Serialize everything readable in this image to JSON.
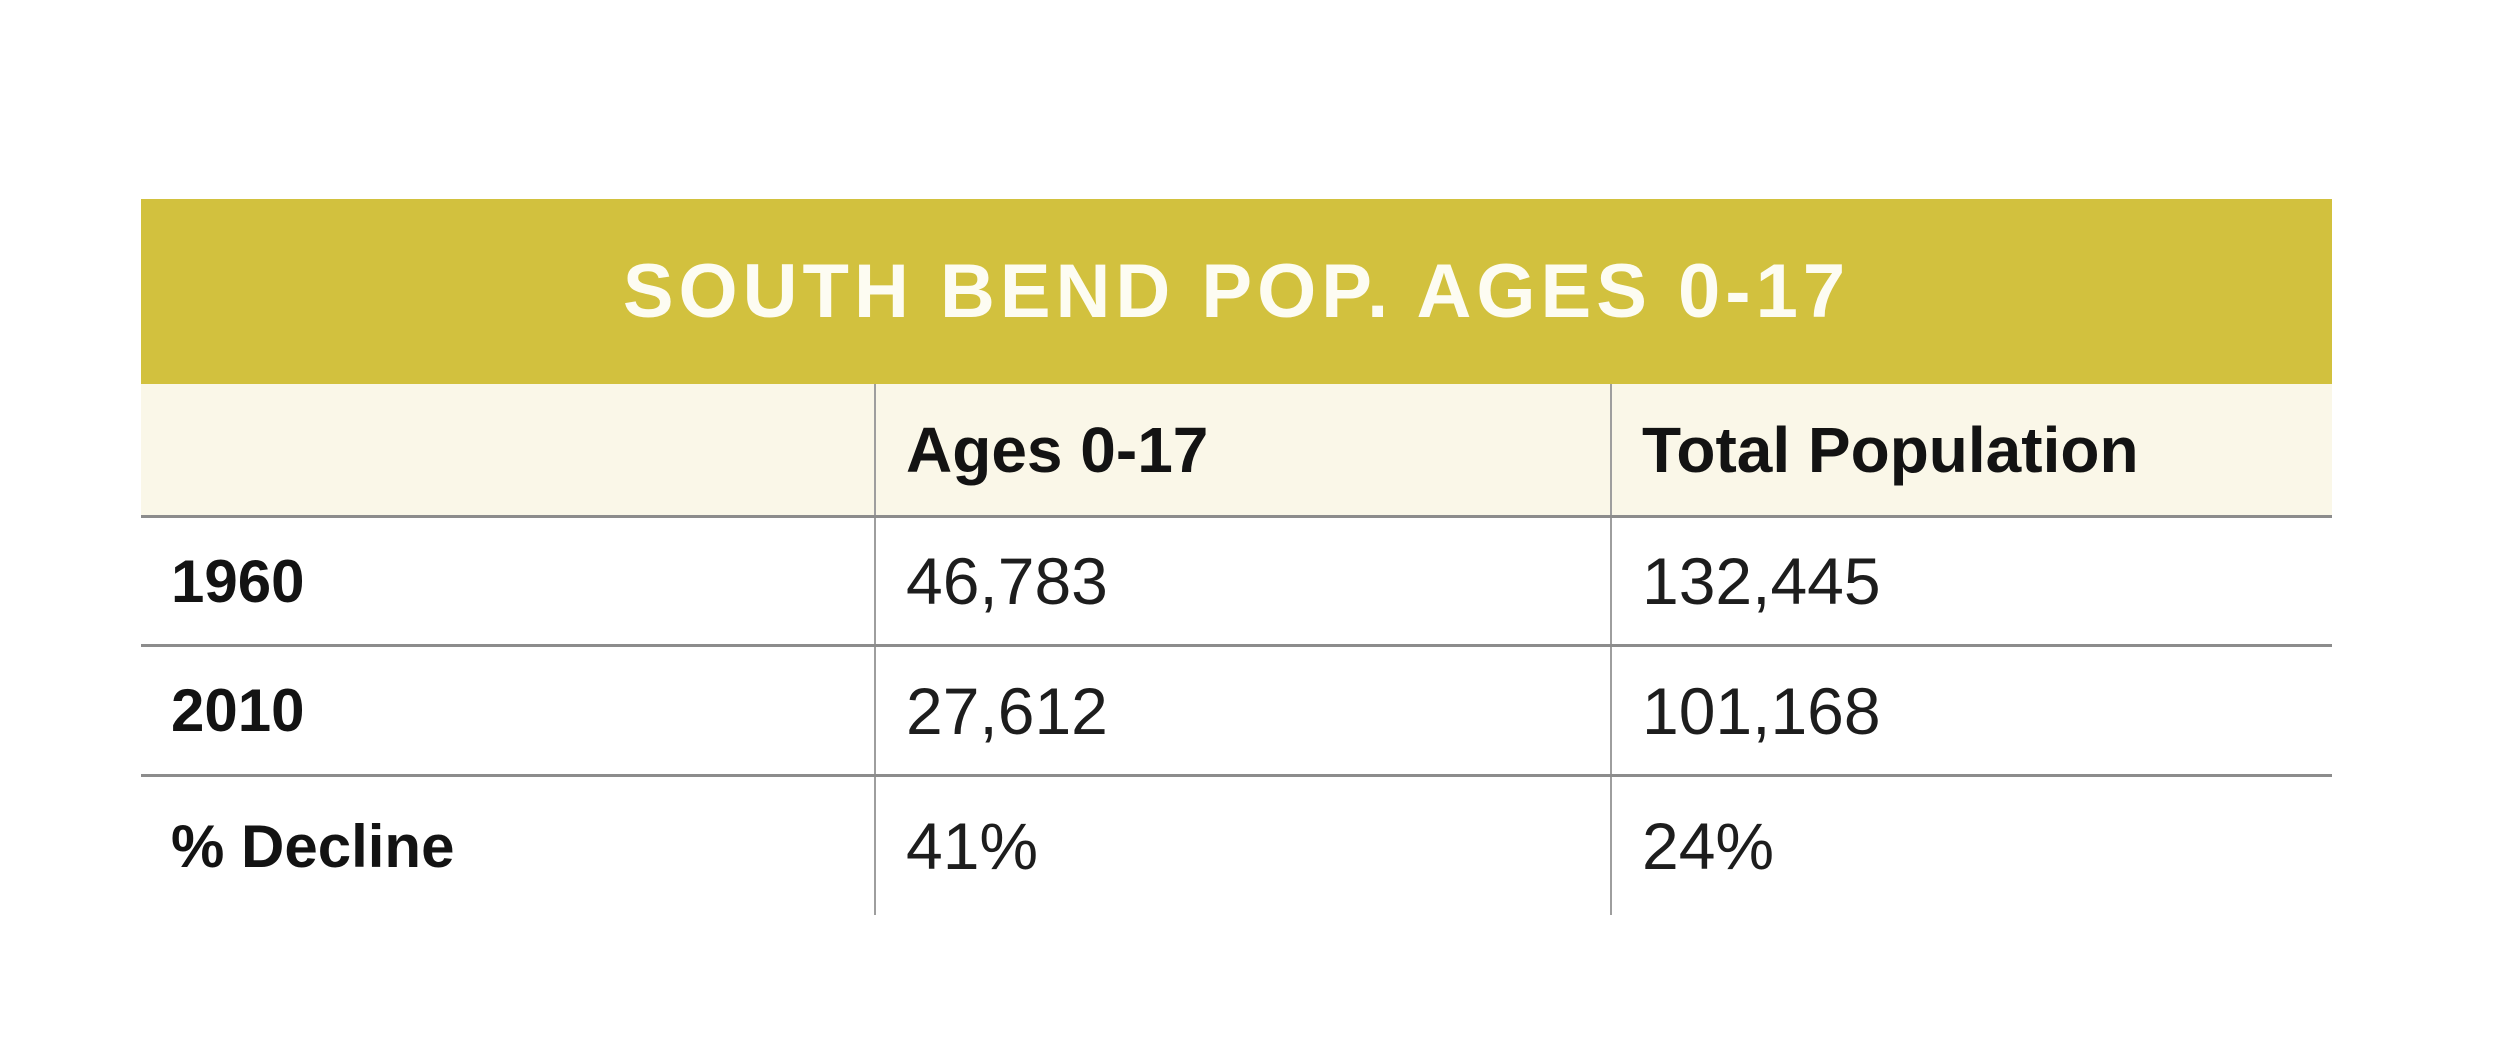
{
  "table": {
    "title": "SOUTH BEND POP. AGES 0-17",
    "columns": {
      "label": "",
      "ages": "Ages 0-17",
      "total": "Total Population"
    },
    "rows": [
      {
        "label": "1960",
        "ages": "46,783",
        "total": "132,445"
      },
      {
        "label": "2010",
        "ages": "27,612",
        "total": "101,168"
      },
      {
        "label": "% Decline",
        "ages": "41%",
        "total": "24%"
      }
    ],
    "colors": {
      "title_bg": "#d2c13e",
      "title_text": "#fdfcf2",
      "header_bg": "#faf7e8",
      "horizontal_rule": "#8c8c8c",
      "vertical_divider": "#9e9e9e",
      "text": "#131313"
    }
  },
  "chart_data": {
    "type": "table",
    "title": "SOUTH BEND POP. AGES 0-17",
    "columns": [
      "",
      "Ages 0-17",
      "Total Population"
    ],
    "rows": [
      [
        "1960",
        "46,783",
        "132,445"
      ],
      [
        "2010",
        "27,612",
        "101,168"
      ],
      [
        "% Decline",
        "41%",
        "24%"
      ]
    ],
    "numeric": {
      "1960": {
        "ages_0_17": 46783,
        "total_population": 132445
      },
      "2010": {
        "ages_0_17": 27612,
        "total_population": 101168
      },
      "percent_decline": {
        "ages_0_17": 41,
        "total_population": 24
      }
    }
  }
}
